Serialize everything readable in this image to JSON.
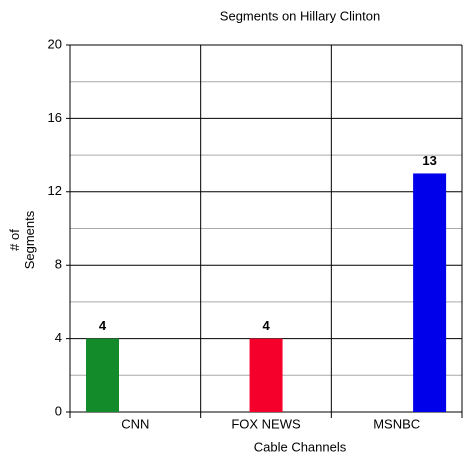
{
  "chart_data": {
    "type": "bar",
    "title": "Segments on Hillary Clinton",
    "x_label": "Cable Channels",
    "y_label": "# of Segments",
    "categories": [
      "CNN",
      "FOX NEWS",
      "MSNBC"
    ],
    "values": [
      4,
      4,
      13
    ],
    "colors": [
      "#138b2b",
      "#f5002a",
      "#0000ea"
    ],
    "ylim": [
      0,
      20
    ],
    "yticks": [
      0,
      4,
      8,
      12,
      16,
      20
    ],
    "minor_yticks": [
      2,
      6,
      10,
      14,
      18
    ],
    "grid": true,
    "data_labels": true
  }
}
